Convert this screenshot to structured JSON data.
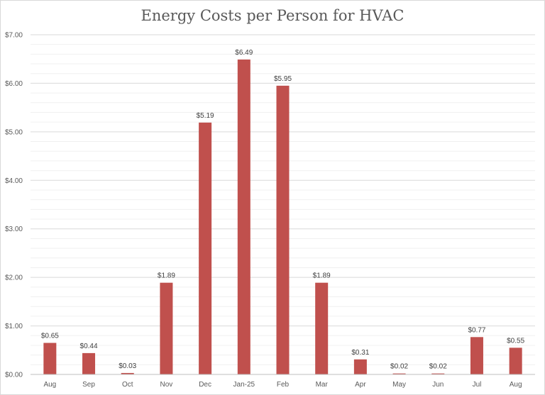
{
  "chart_data": {
    "type": "bar",
    "title": "Energy Costs per Person for HVAC",
    "xlabel": "",
    "ylabel": "",
    "categories": [
      "Aug",
      "Sep",
      "Oct",
      "Nov",
      "Dec",
      "Jan-25",
      "Feb",
      "Mar",
      "Apr",
      "May",
      "Jun",
      "Jul",
      "Aug"
    ],
    "values": [
      0.65,
      0.44,
      0.03,
      1.89,
      5.19,
      6.49,
      5.95,
      1.89,
      0.31,
      0.02,
      0.02,
      0.77,
      0.55
    ],
    "data_labels": [
      "$0.65",
      "$0.44",
      "$0.03",
      "$1.89",
      "$5.19",
      "$6.49",
      "$5.95",
      "$1.89",
      "$0.31",
      "$0.02",
      "$0.02",
      "$0.77",
      "$0.55"
    ],
    "ylim": [
      0,
      7
    ],
    "yticks": [
      0,
      1,
      2,
      3,
      4,
      5,
      6,
      7
    ],
    "ytick_labels": [
      "$0.00",
      "$1.00",
      "$2.00",
      "$3.00",
      "$4.00",
      "$5.00",
      "$6.00",
      "$7.00"
    ],
    "minor_step": 0.2,
    "grid": true,
    "legend": "none",
    "bar_color": "#c0504d",
    "grid_color": "#d9d9d9",
    "minor_grid_color": "#f0f0f0"
  }
}
